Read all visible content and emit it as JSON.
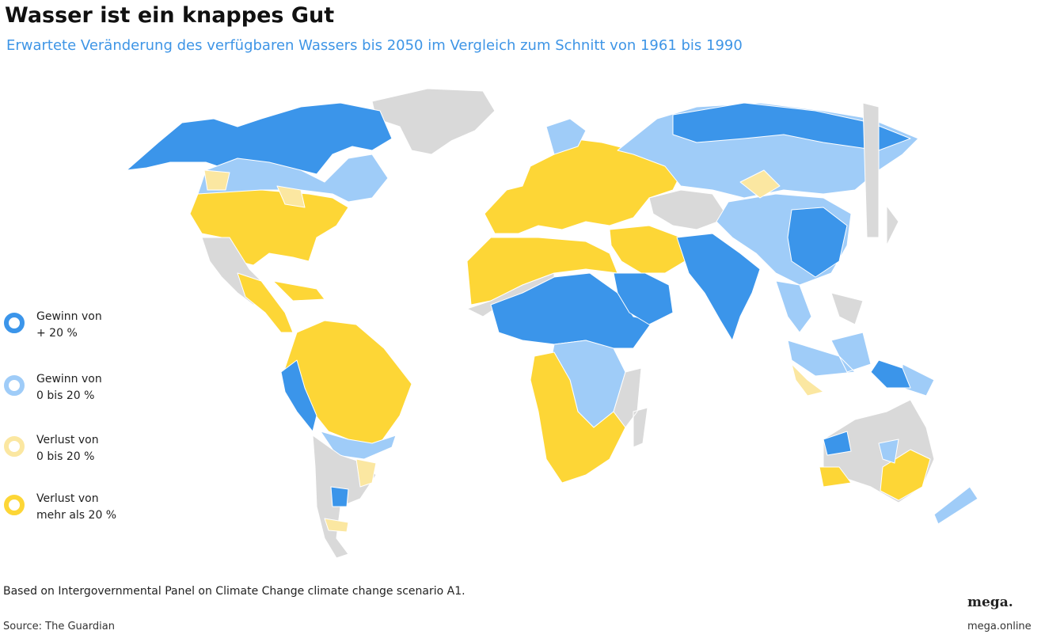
{
  "header": {
    "title": "Wasser ist ein knappes Gut",
    "subtitle": "Erwartete Veränderung des verfügbaren Wassers bis 2050 im Vergleich zum Schnitt von 1961 bis 1990"
  },
  "legend": [
    {
      "lines": [
        "Gewinn von",
        "+ 20 %"
      ],
      "color": "#3b95ea"
    },
    {
      "lines": [
        "Gewinn von",
        "0 bis 20 %"
      ],
      "color": "#9fccf8"
    },
    {
      "lines": [
        "Verlust von",
        "0 bis 20 %"
      ],
      "color": "#fbe7a1"
    },
    {
      "lines": [
        "Verlust von",
        "mehr als 20 %"
      ],
      "color": "#fdd636"
    }
  ],
  "footer": {
    "note": "Based on Intergovernmental Panel on Climate Change climate change scenario A1.",
    "source": "Source: The Guardian",
    "logo": "mega.",
    "url": "mega.online"
  }
}
